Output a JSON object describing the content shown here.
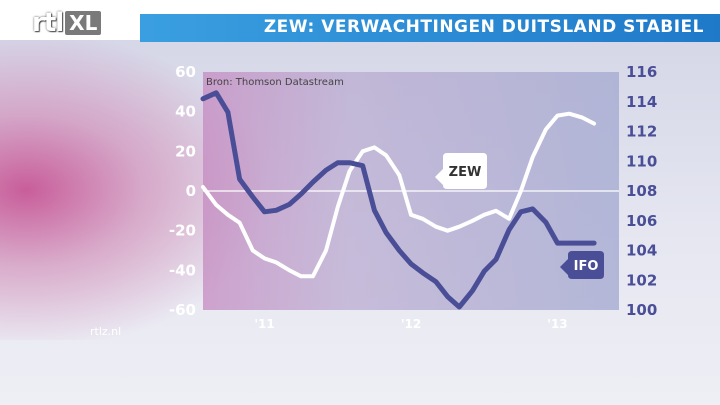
{
  "header": {
    "title": "ZEW: VERWACHTINGEN DUITSLAND STABIEL",
    "logo_text": "rtl",
    "logo_badge": "XL"
  },
  "footer": {
    "site": "rtlz.nl"
  },
  "colors": {
    "accent": "#2a8ad8",
    "zew": "#ffffff",
    "ifo": "#4a4e96"
  },
  "chart_data": {
    "type": "line",
    "annotation": "Bron: Thomson Datastream",
    "xticks": [
      {
        "label": "'11",
        "x": 2011.0
      },
      {
        "label": "'12",
        "x": 2012.0
      },
      {
        "label": "'13",
        "x": 2013.0
      }
    ],
    "xlim": [
      2010.58,
      2013.42
    ],
    "y_left": {
      "ylim": [
        -60,
        60
      ],
      "ticks": [
        "60",
        "40",
        "20",
        "0",
        "-20",
        "-40",
        "-60"
      ]
    },
    "y_right": {
      "ylim": [
        100,
        116
      ],
      "ticks": [
        "116",
        "114",
        "112",
        "110",
        "108",
        "106",
        "104",
        "102",
        "100"
      ]
    },
    "zero_line": 0,
    "series": [
      {
        "name": "ZEW",
        "axis": "left",
        "x": [
          2010.58,
          2010.67,
          2010.75,
          2010.83,
          2010.92,
          2011.0,
          2011.08,
          2011.17,
          2011.25,
          2011.33,
          2011.42,
          2011.5,
          2011.58,
          2011.67,
          2011.75,
          2011.83,
          2011.92,
          2012.0,
          2012.08,
          2012.17,
          2012.25,
          2012.33,
          2012.42,
          2012.5,
          2012.58,
          2012.67,
          2012.75,
          2012.83,
          2012.92,
          2013.0,
          2013.08,
          2013.17,
          2013.25
        ],
        "values": [
          2,
          -7,
          -12,
          -16,
          -30,
          -34,
          -36,
          -40,
          -43,
          -43,
          -30,
          -8,
          10,
          20,
          22,
          18,
          8,
          -12,
          -14,
          -18,
          -20,
          -18,
          -15,
          -12,
          -10,
          -14,
          0,
          17,
          31,
          38,
          39,
          37,
          34
        ]
      },
      {
        "name": "IFO",
        "axis": "right",
        "x": [
          2010.58,
          2010.67,
          2010.75,
          2010.83,
          2010.92,
          2011.0,
          2011.08,
          2011.17,
          2011.25,
          2011.33,
          2011.42,
          2011.5,
          2011.58,
          2011.67,
          2011.75,
          2011.83,
          2011.92,
          2012.0,
          2012.08,
          2012.17,
          2012.25,
          2012.33,
          2012.42,
          2012.5,
          2012.58,
          2012.67,
          2012.75,
          2012.83,
          2012.92,
          2013.0,
          2013.08,
          2013.17,
          2013.25
        ],
        "values": [
          114.2,
          114.6,
          113.3,
          108.8,
          107.6,
          106.6,
          106.7,
          107.1,
          107.8,
          108.6,
          109.4,
          109.9,
          109.9,
          109.7,
          106.7,
          105.2,
          104.0,
          103.1,
          102.5,
          101.9,
          100.9,
          100.2,
          101.3,
          102.6,
          103.4,
          105.4,
          106.6,
          106.8,
          105.9,
          104.5,
          104.5,
          104.5,
          104.5
        ]
      }
    ],
    "labels": {
      "zew": "ZEW",
      "ifo": "IFO"
    }
  }
}
